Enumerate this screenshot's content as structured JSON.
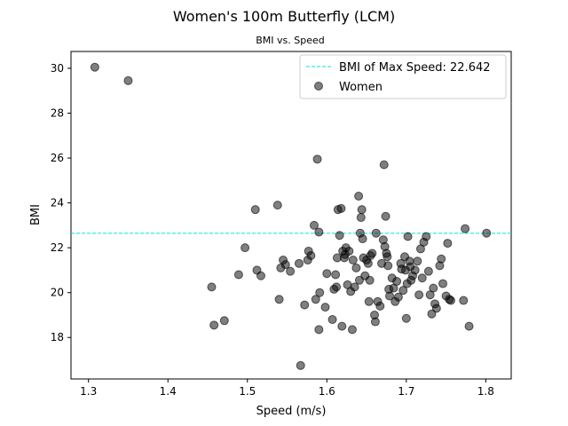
{
  "chart_data": {
    "type": "scatter",
    "title": "Women's 100m Butterfly (LCM)",
    "subtitle": "BMI vs. Speed",
    "xlabel": "Speed (m/s)",
    "ylabel": "BMI",
    "xlim": [
      1.278,
      1.832
    ],
    "ylim": [
      16.15,
      30.75
    ],
    "xticks": [
      "1.3",
      "1.4",
      "1.5",
      "1.6",
      "1.7",
      "1.8"
    ],
    "yticks": [
      "18",
      "20",
      "22",
      "24",
      "26",
      "28",
      "30"
    ],
    "legend_position": "top-right",
    "reference_line": {
      "label": "BMI of Max Speed: 22.642",
      "y": 22.642,
      "color": "#00e5e5",
      "style": "dashed"
    },
    "series": [
      {
        "name": "Women",
        "color": "#000000",
        "opacity": 0.5,
        "points": [
          [
            1.308,
            30.05
          ],
          [
            1.35,
            29.45
          ],
          [
            1.455,
            20.25
          ],
          [
            1.458,
            18.55
          ],
          [
            1.471,
            18.75
          ],
          [
            1.489,
            20.8
          ],
          [
            1.497,
            22.0
          ],
          [
            1.51,
            23.7
          ],
          [
            1.512,
            21.0
          ],
          [
            1.517,
            20.75
          ],
          [
            1.538,
            23.9
          ],
          [
            1.54,
            19.7
          ],
          [
            1.542,
            21.1
          ],
          [
            1.545,
            21.45
          ],
          [
            1.548,
            21.25
          ],
          [
            1.554,
            20.95
          ],
          [
            1.565,
            21.3
          ],
          [
            1.567,
            16.75
          ],
          [
            1.572,
            19.45
          ],
          [
            1.576,
            21.45
          ],
          [
            1.577,
            21.85
          ],
          [
            1.58,
            21.65
          ],
          [
            1.584,
            23.0
          ],
          [
            1.586,
            19.7
          ],
          [
            1.588,
            25.95
          ],
          [
            1.59,
            22.7
          ],
          [
            1.59,
            18.35
          ],
          [
            1.591,
            20.0
          ],
          [
            1.598,
            19.35
          ],
          [
            1.6,
            20.85
          ],
          [
            1.607,
            18.8
          ],
          [
            1.609,
            20.15
          ],
          [
            1.611,
            20.8
          ],
          [
            1.612,
            20.25
          ],
          [
            1.613,
            21.55
          ],
          [
            1.614,
            23.7
          ],
          [
            1.616,
            22.55
          ],
          [
            1.618,
            23.75
          ],
          [
            1.619,
            18.5
          ],
          [
            1.62,
            21.85
          ],
          [
            1.622,
            21.55
          ],
          [
            1.623,
            21.7
          ],
          [
            1.624,
            22.0
          ],
          [
            1.626,
            20.35
          ],
          [
            1.628,
            21.85
          ],
          [
            1.63,
            20.05
          ],
          [
            1.632,
            18.35
          ],
          [
            1.633,
            21.45
          ],
          [
            1.635,
            20.25
          ],
          [
            1.637,
            21.1
          ],
          [
            1.64,
            24.3
          ],
          [
            1.641,
            20.55
          ],
          [
            1.642,
            22.65
          ],
          [
            1.643,
            23.35
          ],
          [
            1.644,
            23.7
          ],
          [
            1.645,
            22.4
          ],
          [
            1.646,
            21.55
          ],
          [
            1.648,
            20.75
          ],
          [
            1.65,
            21.45
          ],
          [
            1.652,
            21.3
          ],
          [
            1.653,
            19.6
          ],
          [
            1.654,
            20.55
          ],
          [
            1.655,
            21.65
          ],
          [
            1.657,
            21.75
          ],
          [
            1.66,
            19.0
          ],
          [
            1.661,
            18.7
          ],
          [
            1.662,
            22.65
          ],
          [
            1.664,
            19.6
          ],
          [
            1.667,
            19.4
          ],
          [
            1.669,
            21.3
          ],
          [
            1.671,
            22.35
          ],
          [
            1.672,
            25.7
          ],
          [
            1.673,
            22.05
          ],
          [
            1.674,
            23.4
          ],
          [
            1.675,
            21.75
          ],
          [
            1.676,
            21.6
          ],
          [
            1.677,
            21.2
          ],
          [
            1.678,
            20.15
          ],
          [
            1.679,
            19.85
          ],
          [
            1.682,
            20.65
          ],
          [
            1.684,
            20.2
          ],
          [
            1.686,
            19.6
          ],
          [
            1.688,
            20.5
          ],
          [
            1.69,
            19.8
          ],
          [
            1.693,
            21.3
          ],
          [
            1.694,
            21.05
          ],
          [
            1.696,
            20.1
          ],
          [
            1.698,
            21.6
          ],
          [
            1.699,
            21.0
          ],
          [
            1.7,
            18.85
          ],
          [
            1.701,
            20.4
          ],
          [
            1.702,
            22.5
          ],
          [
            1.704,
            21.4
          ],
          [
            1.705,
            21.15
          ],
          [
            1.706,
            20.55
          ],
          [
            1.708,
            20.75
          ],
          [
            1.711,
            21.0
          ],
          [
            1.714,
            21.4
          ],
          [
            1.716,
            19.9
          ],
          [
            1.718,
            21.95
          ],
          [
            1.72,
            20.65
          ],
          [
            1.722,
            22.25
          ],
          [
            1.725,
            22.5
          ],
          [
            1.728,
            20.95
          ],
          [
            1.73,
            19.9
          ],
          [
            1.732,
            19.05
          ],
          [
            1.734,
            20.2
          ],
          [
            1.736,
            19.5
          ],
          [
            1.738,
            19.3
          ],
          [
            1.742,
            21.2
          ],
          [
            1.744,
            21.5
          ],
          [
            1.746,
            20.4
          ],
          [
            1.75,
            19.85
          ],
          [
            1.752,
            22.2
          ],
          [
            1.754,
            19.7
          ],
          [
            1.756,
            19.65
          ],
          [
            1.772,
            19.65
          ],
          [
            1.774,
            22.85
          ],
          [
            1.779,
            18.5
          ],
          [
            1.801,
            22.65
          ]
        ]
      }
    ]
  }
}
